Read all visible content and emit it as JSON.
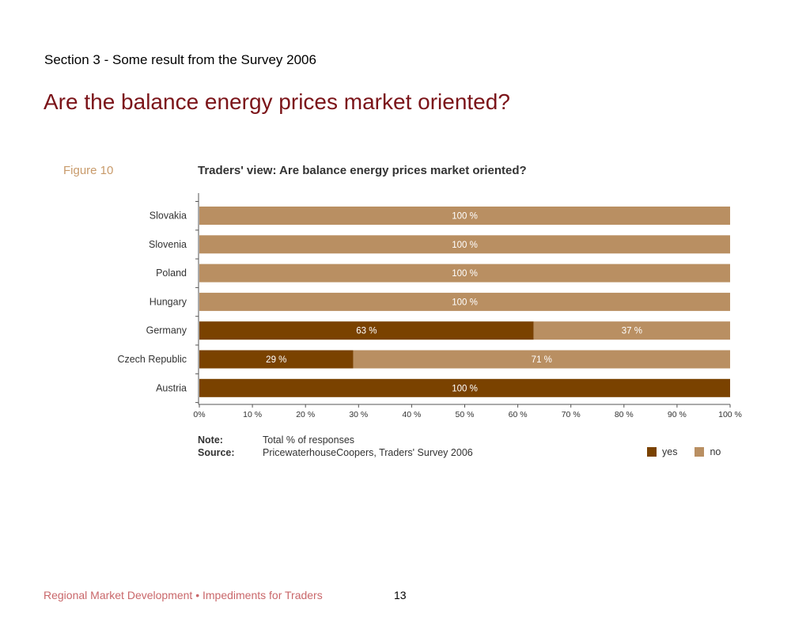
{
  "slide": {
    "section": "Section 3 - Some result from the Survey 2006",
    "title": "Are the balance energy prices market oriented?",
    "footer_text": "Regional Market Development • Impediments for Traders",
    "page_number": "13"
  },
  "figure": {
    "label": "Figure 10",
    "note_key": "Note:",
    "note_value": "Total % of responses",
    "source_key": "Source:",
    "source_value": "PricewaterhouseCoopers, Traders' Survey 2006"
  },
  "chart_data": {
    "type": "bar",
    "orientation": "horizontal",
    "stacked": true,
    "title": "Traders' view: Are balance energy prices market oriented?",
    "categories": [
      "Slovakia",
      "Slovenia",
      "Poland",
      "Hungary",
      "Germany",
      "Czech Republic",
      "Austria"
    ],
    "series": [
      {
        "name": "yes",
        "values": [
          0,
          0,
          0,
          0,
          63,
          29,
          100
        ],
        "color": "#7a4200"
      },
      {
        "name": "no",
        "values": [
          100,
          100,
          100,
          100,
          37,
          71,
          0
        ],
        "color": "#b98f62"
      }
    ],
    "value_labels": {
      "yes": [
        "",
        "",
        "",
        "",
        "63 %",
        "29 %",
        "100 %"
      ],
      "no": [
        "100 %",
        "100 %",
        "100 %",
        "100 %",
        "37 %",
        "71 %",
        ""
      ]
    },
    "xlim": [
      0,
      100
    ],
    "xticks": [
      0,
      10,
      20,
      30,
      40,
      50,
      60,
      70,
      80,
      90,
      100
    ],
    "xtick_labels": [
      "0%",
      "10 %",
      "20 %",
      "30 %",
      "40 %",
      "50 %",
      "60 %",
      "70 %",
      "80 %",
      "90 %",
      "100 %"
    ],
    "legend_position": "bottom-right",
    "grid": false
  }
}
